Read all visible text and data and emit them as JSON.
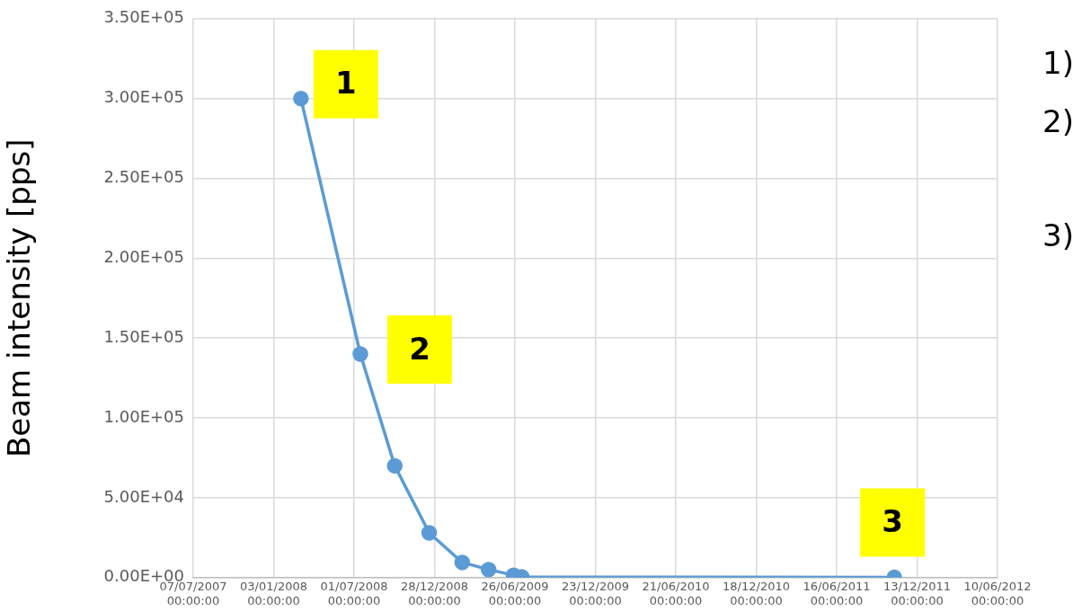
{
  "chart_data": {
    "type": "line",
    "ylabel": "Beam intensity [pps]",
    "x": [
      "2008-03-04",
      "2008-07-15",
      "2008-09-30",
      "2008-12-16",
      "2009-02-28",
      "2009-04-28",
      "2009-06-23",
      "2009-07-11",
      "2011-10-23"
    ],
    "series": [
      {
        "color": "#5b9bd5",
        "values": [
          300000,
          140000,
          70000,
          28000,
          9500,
          5000,
          1500,
          500,
          100
        ]
      }
    ],
    "xlim": [
      "2007-07-07",
      "2012-06-10"
    ],
    "xticks": [
      {
        "value": "2007-07-07",
        "label": "07/07/2007 00:00:00"
      },
      {
        "value": "2008-01-03",
        "label": "03/01/2008 00:00:00"
      },
      {
        "value": "2008-07-01",
        "label": "01/07/2008 00:00:00"
      },
      {
        "value": "2008-12-28",
        "label": "28/12/2008 00:00:00"
      },
      {
        "value": "2009-06-26",
        "label": "26/06/2009 00:00:00"
      },
      {
        "value": "2009-12-23",
        "label": "23/12/2009 00:00:00"
      },
      {
        "value": "2010-06-21",
        "label": "21/06/2010 00:00:00"
      },
      {
        "value": "2010-12-18",
        "label": "18/12/2010 00:00:00"
      },
      {
        "value": "2011-06-16",
        "label": "16/06/2011 00:00:00"
      },
      {
        "value": "2011-12-13",
        "label": "13/12/2011 00:00:00"
      },
      {
        "value": "2012-06-10",
        "label": "10/06/2012 00:00:00"
      }
    ],
    "ylim": [
      0,
      350000
    ],
    "yticks": [
      {
        "value": 0,
        "label": "0.00E+00"
      },
      {
        "value": 50000,
        "label": "5.00E+04"
      },
      {
        "value": 100000,
        "label": "1.00E+05"
      },
      {
        "value": 150000,
        "label": "1.50E+05"
      },
      {
        "value": 200000,
        "label": "2.00E+05"
      },
      {
        "value": 250000,
        "label": "2.50E+05"
      },
      {
        "value": 300000,
        "label": "3.00E+05"
      },
      {
        "value": 350000,
        "label": "3.50E+05"
      }
    ],
    "grid": true,
    "marker": "circle",
    "line_style": "solid",
    "legend": false,
    "annotations": [
      {
        "text": "1",
        "x": "2008-03-04",
        "y": 300000
      },
      {
        "text": "2",
        "x": "2008-07-15",
        "y": 140000
      },
      {
        "text": "3",
        "x": "2011-10-23",
        "y": 100
      },
      "1)",
      "2)",
      "3)"
    ]
  }
}
